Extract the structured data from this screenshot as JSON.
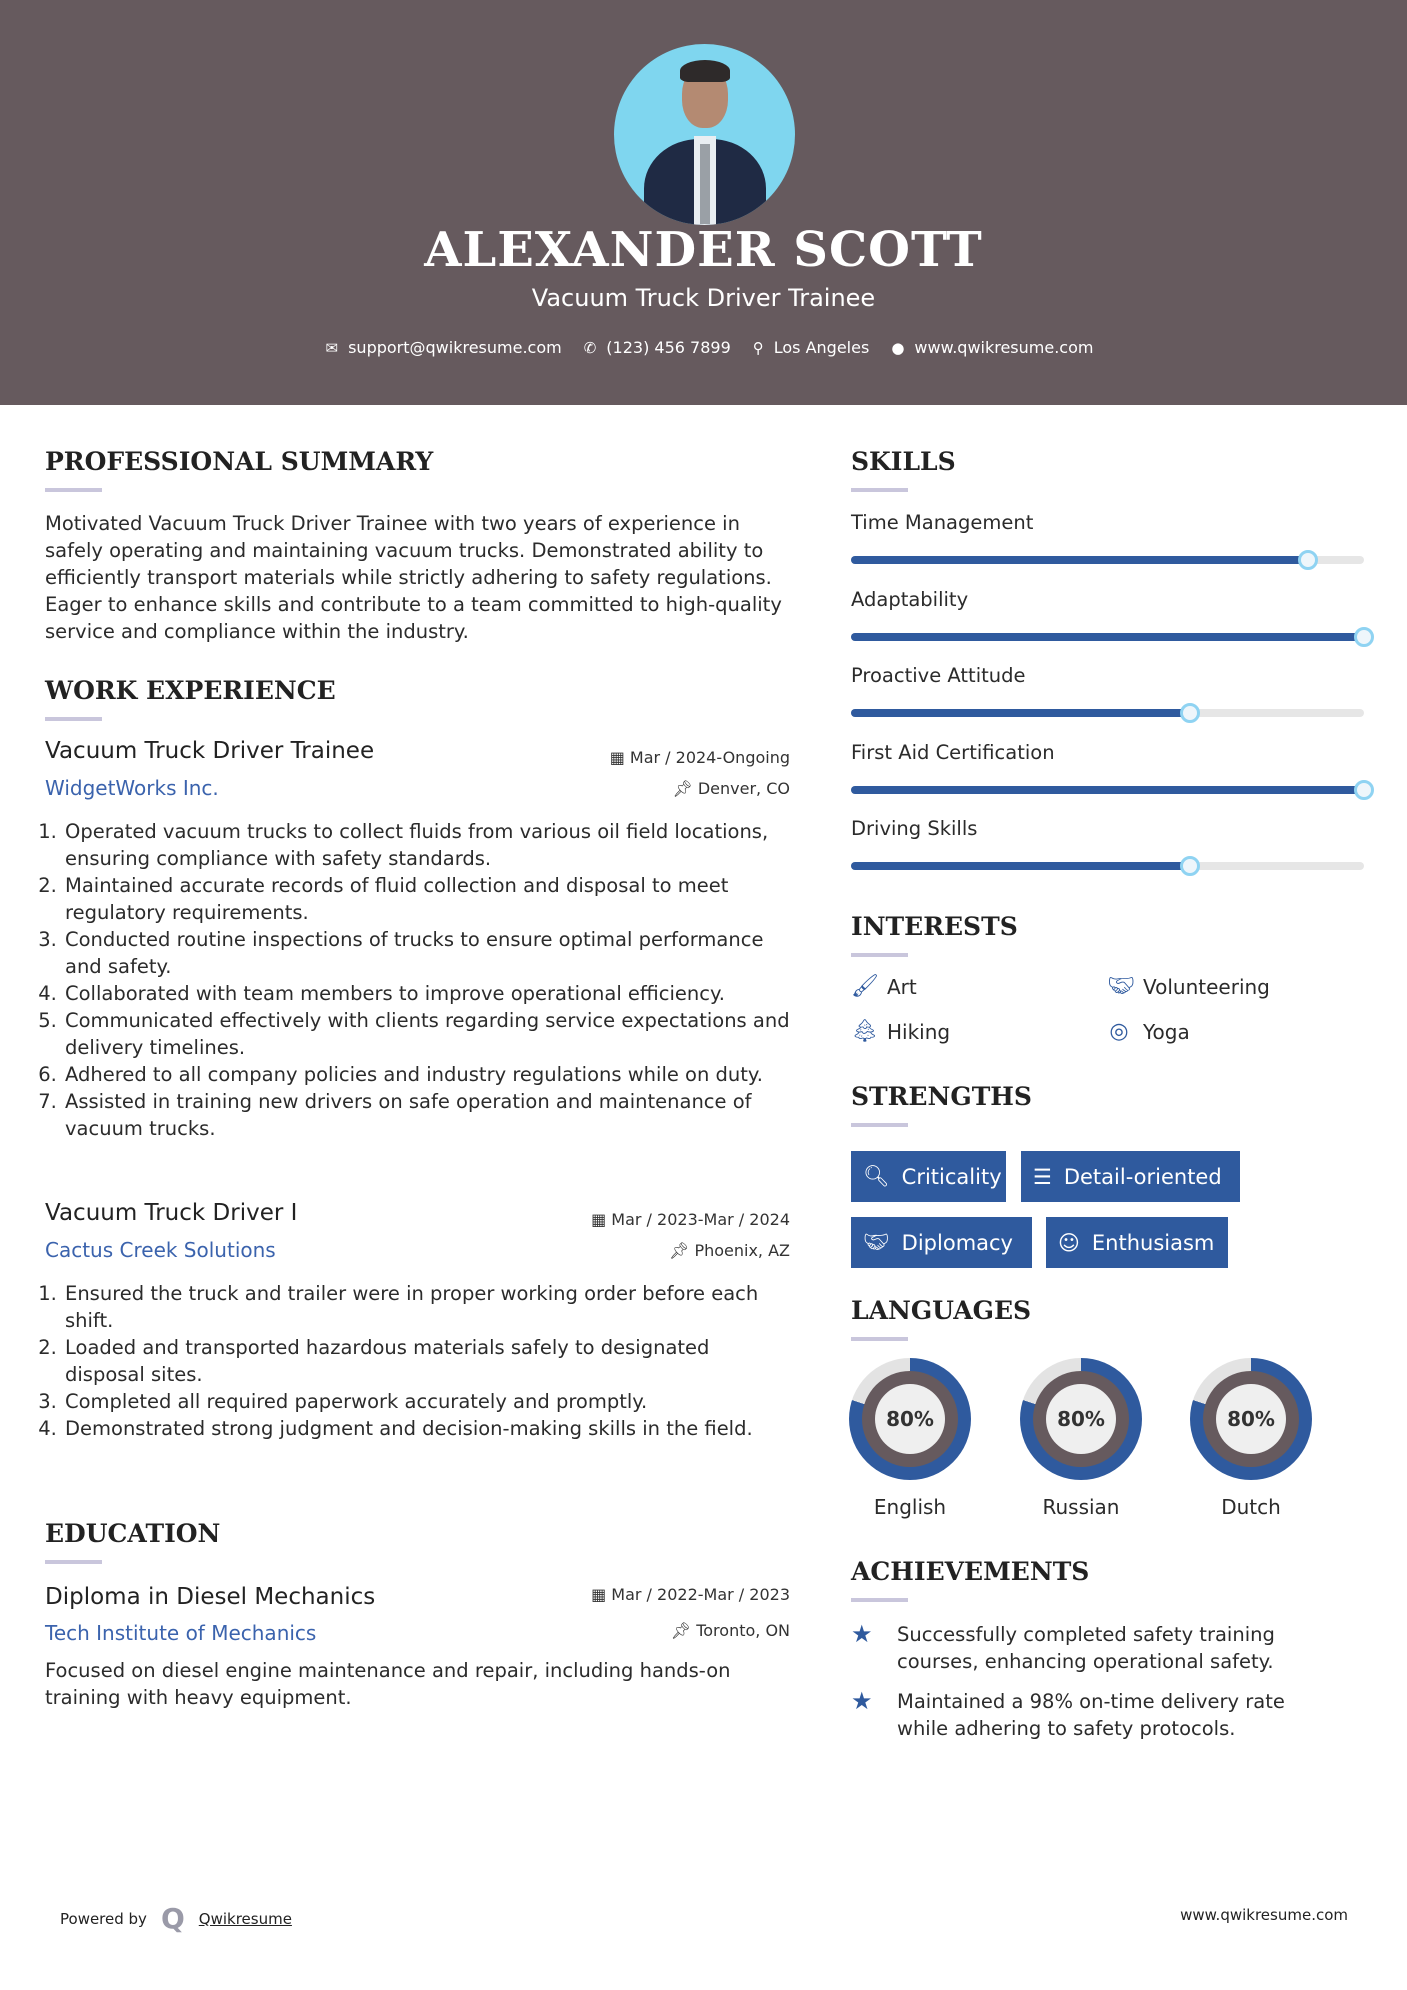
{
  "header": {
    "name": "ALEXANDER SCOTT",
    "title": "Vacuum Truck Driver Trainee",
    "contacts": [
      {
        "icon": "envelope-icon",
        "text": "support@qwikresume.com"
      },
      {
        "icon": "phone-icon",
        "text": "(123) 456 7899"
      },
      {
        "icon": "map-marker-icon",
        "text": "Los Angeles"
      },
      {
        "icon": "globe-icon",
        "text": "www.qwikresume.com"
      }
    ]
  },
  "summary": {
    "heading": "PROFESSIONAL SUMMARY",
    "text": "Motivated Vacuum Truck Driver Trainee with two years of experience in safely operating and maintaining vacuum trucks. Demonstrated ability to efficiently transport materials while strictly adhering to safety regulations. Eager to enhance skills and contribute to a team committed to high-quality service and compliance within the industry."
  },
  "experience": {
    "heading": "WORK EXPERIENCE",
    "jobs": [
      {
        "title": "Vacuum Truck Driver Trainee",
        "company": "WidgetWorks Inc.",
        "date": "Mar / 2024-Ongoing",
        "location": "Denver, CO",
        "bullets": [
          "Operated vacuum trucks to collect fluids from various oil field locations, ensuring compliance with safety standards.",
          "Maintained accurate records of fluid collection and disposal to meet regulatory requirements.",
          "Conducted routine inspections of trucks to ensure optimal performance and safety.",
          "Collaborated with team members to improve operational efficiency.",
          "Communicated effectively with clients regarding service expectations and delivery timelines.",
          "Adhered to all company policies and industry regulations while on duty.",
          "Assisted in training new drivers on safe operation and maintenance of vacuum trucks."
        ]
      },
      {
        "title": "Vacuum Truck Driver I",
        "company": "Cactus Creek Solutions",
        "date": "Mar / 2023-Mar / 2024",
        "location": "Phoenix, AZ",
        "bullets": [
          "Ensured the truck and trailer were in proper working order before each shift.",
          "Loaded and transported hazardous materials safely to designated disposal sites.",
          "Completed all required paperwork accurately and promptly.",
          "Demonstrated strong judgment and decision-making skills in the field."
        ]
      }
    ]
  },
  "education": {
    "heading": "EDUCATION",
    "degree": "Diploma in Diesel Mechanics",
    "school": "Tech Institute of Mechanics",
    "date": "Mar / 2022-Mar / 2023",
    "location": "Toronto, ON",
    "description": "Focused on diesel engine maintenance and repair, including hands-on training with heavy equipment."
  },
  "skills": {
    "heading": "SKILLS",
    "items": [
      {
        "name": "Time Management",
        "level": 0.89
      },
      {
        "name": "Adaptability",
        "level": 1.0
      },
      {
        "name": "Proactive Attitude",
        "level": 0.66
      },
      {
        "name": "First Aid Certification",
        "level": 1.0
      },
      {
        "name": "Driving Skills",
        "level": 0.66
      }
    ]
  },
  "interests": {
    "heading": "INTERESTS",
    "items": [
      {
        "icon": "paintbrush-icon",
        "label": "Art"
      },
      {
        "icon": "handshake-icon",
        "label": "Volunteering"
      },
      {
        "icon": "tree-icon",
        "label": "Hiking"
      },
      {
        "icon": "life-ring-icon",
        "label": "Yoga"
      }
    ]
  },
  "strengths": {
    "heading": "STRENGTHS",
    "items": [
      {
        "icon": "search-icon",
        "label": "Criticality"
      },
      {
        "icon": "list-icon",
        "label": "Detail-oriented"
      },
      {
        "icon": "handshake-icon",
        "label": "Diplomacy"
      },
      {
        "icon": "smile-icon",
        "label": "Enthusiasm"
      }
    ]
  },
  "languages": {
    "heading": "LANGUAGES",
    "items": [
      {
        "name": "English",
        "percent": 80,
        "label": "80%"
      },
      {
        "name": "Russian",
        "percent": 80,
        "label": "80%"
      },
      {
        "name": "Dutch",
        "percent": 80,
        "label": "80%"
      }
    ]
  },
  "achievements": {
    "heading": "ACHIEVEMENTS",
    "items": [
      "Successfully completed safety training courses, enhancing operational safety.",
      "Maintained a 98% on-time delivery rate while adhering to safety protocols."
    ]
  },
  "footer": {
    "powered_by": "Powered by",
    "brand": "Qwikresume",
    "website": "www.qwikresume.com"
  },
  "colors": {
    "header_bg": "#665a5e",
    "accent": "#2f5a9e",
    "link": "#3b63ad",
    "underline": "#c9c6dc"
  }
}
